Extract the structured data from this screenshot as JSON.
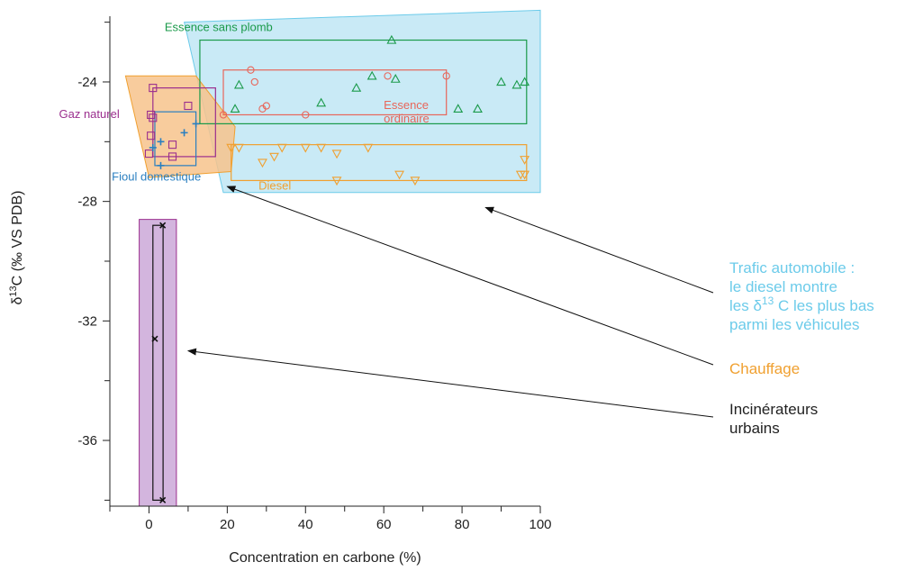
{
  "chart_data": {
    "type": "scatter",
    "title": "",
    "xlabel": "Concentration en carbone (%)",
    "ylabel": "δ13C (‰ VS PDB)",
    "xlim": [
      -10,
      100
    ],
    "ylim": [
      -38.2,
      -21.8
    ],
    "x_ticks": [
      0,
      20,
      40,
      60,
      80,
      100
    ],
    "y_ticks": [
      -24,
      -28,
      -32,
      -36
    ],
    "grid": false,
    "colors": {
      "essence_sans_plomb": "#1a9a4a",
      "essence_ordinaire": "#e8665a",
      "diesel": "#f0a030",
      "gaz_naturel": "#9b2f8e",
      "fioul_domestique": "#2a7fc0",
      "trafic_zone": "#bfe6f4",
      "chauffage_zone": "#f7c38c",
      "incinerateurs_zone": "#d3b5de",
      "trafic_text": "#6ccbea",
      "chauffage_text": "#f0a030",
      "incinerateurs_text": "#222222"
    },
    "zones": [
      {
        "id": "trafic",
        "polygon": [
          [
            9,
            -22.0
          ],
          [
            100,
            -21.6
          ],
          [
            100,
            -27.7
          ],
          [
            19,
            -27.7
          ]
        ]
      },
      {
        "id": "chauffage",
        "polygon": [
          [
            -6,
            -23.8
          ],
          [
            12,
            -23.8
          ],
          [
            22,
            -25.5
          ],
          [
            21,
            -27.0
          ],
          [
            0,
            -27.2
          ]
        ]
      },
      {
        "id": "incinerateurs",
        "polygon": [
          [
            -2.5,
            -28.6
          ],
          [
            7,
            -28.6
          ],
          [
            7,
            -38.2
          ],
          [
            -2.5,
            -38.2
          ]
        ]
      }
    ],
    "series": [
      {
        "name": "Essence sans plomb",
        "marker": "triangle-up",
        "box": [
          13,
          -22.6,
          96.5,
          -25.4
        ],
        "label": {
          "text": "Essence sans plomb",
          "at": [
            4,
            -22.3
          ]
        },
        "points": [
          [
            62,
            -22.6
          ],
          [
            57,
            -23.8
          ],
          [
            53,
            -24.2
          ],
          [
            63,
            -23.9
          ],
          [
            44,
            -24.7
          ],
          [
            90,
            -24.0
          ],
          [
            94,
            -24.1
          ],
          [
            96,
            -24.0
          ],
          [
            79,
            -24.9
          ],
          [
            84,
            -24.9
          ],
          [
            23,
            -24.1
          ],
          [
            22,
            -24.9
          ]
        ]
      },
      {
        "name": "Essence ordinaire",
        "marker": "circle",
        "box": [
          19,
          -23.6,
          76,
          -25.1
        ],
        "label": {
          "text": "Essence\nordinaire",
          "at": [
            60,
            -24.9
          ]
        },
        "points": [
          [
            26,
            -23.6
          ],
          [
            61,
            -23.8
          ],
          [
            76,
            -23.8
          ],
          [
            27,
            -24.0
          ],
          [
            30,
            -24.8
          ],
          [
            29,
            -24.9
          ],
          [
            40,
            -25.1
          ],
          [
            19,
            -25.1
          ]
        ]
      },
      {
        "name": "Diesel",
        "marker": "triangle-down",
        "box": [
          21,
          -26.1,
          96.5,
          -27.3
        ],
        "label": {
          "text": "Diesel",
          "at": [
            28,
            -27.6
          ]
        },
        "points": [
          [
            21,
            -26.2
          ],
          [
            23,
            -26.2
          ],
          [
            34,
            -26.2
          ],
          [
            40,
            -26.2
          ],
          [
            44,
            -26.2
          ],
          [
            56,
            -26.2
          ],
          [
            48,
            -26.4
          ],
          [
            32,
            -26.5
          ],
          [
            29,
            -26.7
          ],
          [
            96,
            -26.6
          ],
          [
            64,
            -27.1
          ],
          [
            68,
            -27.3
          ],
          [
            95,
            -27.1
          ],
          [
            96,
            -27.1
          ],
          [
            48,
            -27.3
          ]
        ]
      },
      {
        "name": "Gaz naturel",
        "marker": "square",
        "box": [
          1,
          -24.2,
          17,
          -26.5
        ],
        "label": {
          "text": "Gaz naturel",
          "at": [
            -23,
            -25.2
          ]
        },
        "points": [
          [
            1,
            -24.2
          ],
          [
            10,
            -24.8
          ],
          [
            0.5,
            -25.1
          ],
          [
            1,
            -25.2
          ],
          [
            0.5,
            -25.8
          ],
          [
            6,
            -26.1
          ],
          [
            0,
            -26.4
          ],
          [
            6,
            -26.5
          ]
        ]
      },
      {
        "name": "Fioul domestique",
        "marker": "plus",
        "box": [
          1.5,
          -25.0,
          12,
          -26.8
        ],
        "label": {
          "text": "Fioul domestique",
          "at": [
            -9.5,
            -27.3
          ]
        },
        "points": [
          [
            12,
            -25.4
          ],
          [
            9,
            -25.7
          ],
          [
            3,
            -26.0
          ],
          [
            1,
            -26.2
          ],
          [
            3,
            -26.8
          ]
        ]
      },
      {
        "name": "Incinérateurs urbains",
        "marker": "x",
        "box": [
          1,
          -28.8,
          3.6,
          -38.0
        ],
        "label": null,
        "points": [
          [
            3.5,
            -28.8
          ],
          [
            1.5,
            -32.6
          ],
          [
            3.5,
            -38.0
          ]
        ]
      }
    ],
    "annotations": [
      {
        "id": "trafic",
        "lines": [
          "Trafic automobile :",
          "le diesel montre",
          "les δ13 C les plus bas",
          "parmi les véhicules"
        ],
        "arrow_to": [
          86,
          -28.2
        ]
      },
      {
        "id": "chauffage",
        "lines": [
          "Chauffage"
        ],
        "arrow_to": [
          20,
          -27.5
        ]
      },
      {
        "id": "incinerateurs",
        "lines": [
          "Incinérateurs",
          "urbains"
        ],
        "arrow_to": [
          10,
          -33.0
        ]
      }
    ]
  }
}
